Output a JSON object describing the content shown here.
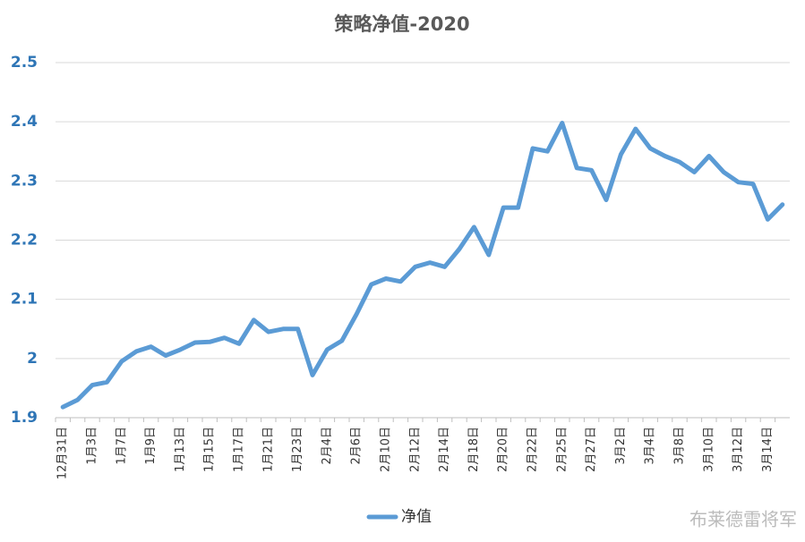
{
  "chart_data": {
    "type": "line",
    "title": "策略净值-2020",
    "categories": [
      "12月31日",
      null,
      "1月3日",
      null,
      "1月7日",
      null,
      "1月9日",
      null,
      "1月13日",
      null,
      "1月15日",
      null,
      "1月17日",
      null,
      "1月21日",
      null,
      "1月23日",
      null,
      "2月4日",
      null,
      "2月6日",
      null,
      "2月10日",
      null,
      "2月12日",
      null,
      "2月14日",
      null,
      "2月18日",
      null,
      "2月20日",
      null,
      "2月22日",
      null,
      "2月25日",
      null,
      "2月27日",
      null,
      "3月2日",
      null,
      "3月4日",
      null,
      "3月8日",
      null,
      "3月10日",
      null,
      "3月12日",
      null,
      "3月14日",
      null
    ],
    "series": [
      {
        "name": "净值",
        "color": "#5b9bd5",
        "values": [
          1.918,
          1.93,
          1.955,
          1.96,
          1.995,
          2.012,
          2.02,
          2.005,
          2.015,
          2.027,
          2.028,
          2.035,
          2.025,
          2.065,
          2.045,
          2.05,
          2.05,
          1.972,
          2.015,
          2.03,
          2.075,
          2.125,
          2.135,
          2.13,
          2.155,
          2.162,
          2.155,
          2.185,
          2.222,
          2.175,
          2.255,
          2.255,
          2.355,
          2.35,
          2.398,
          2.322,
          2.318,
          2.268,
          2.345,
          2.388,
          2.355,
          2.342,
          2.332,
          2.315,
          2.342,
          2.315,
          2.298,
          2.295,
          2.235,
          2.26
        ]
      }
    ],
    "ylim": [
      1.9,
      2.5
    ],
    "yticks": [
      1.9,
      2,
      2.1,
      2.2,
      2.3,
      2.4,
      2.5
    ],
    "grid": true,
    "legend": "bottom",
    "watermark": "布莱德雷将军"
  }
}
